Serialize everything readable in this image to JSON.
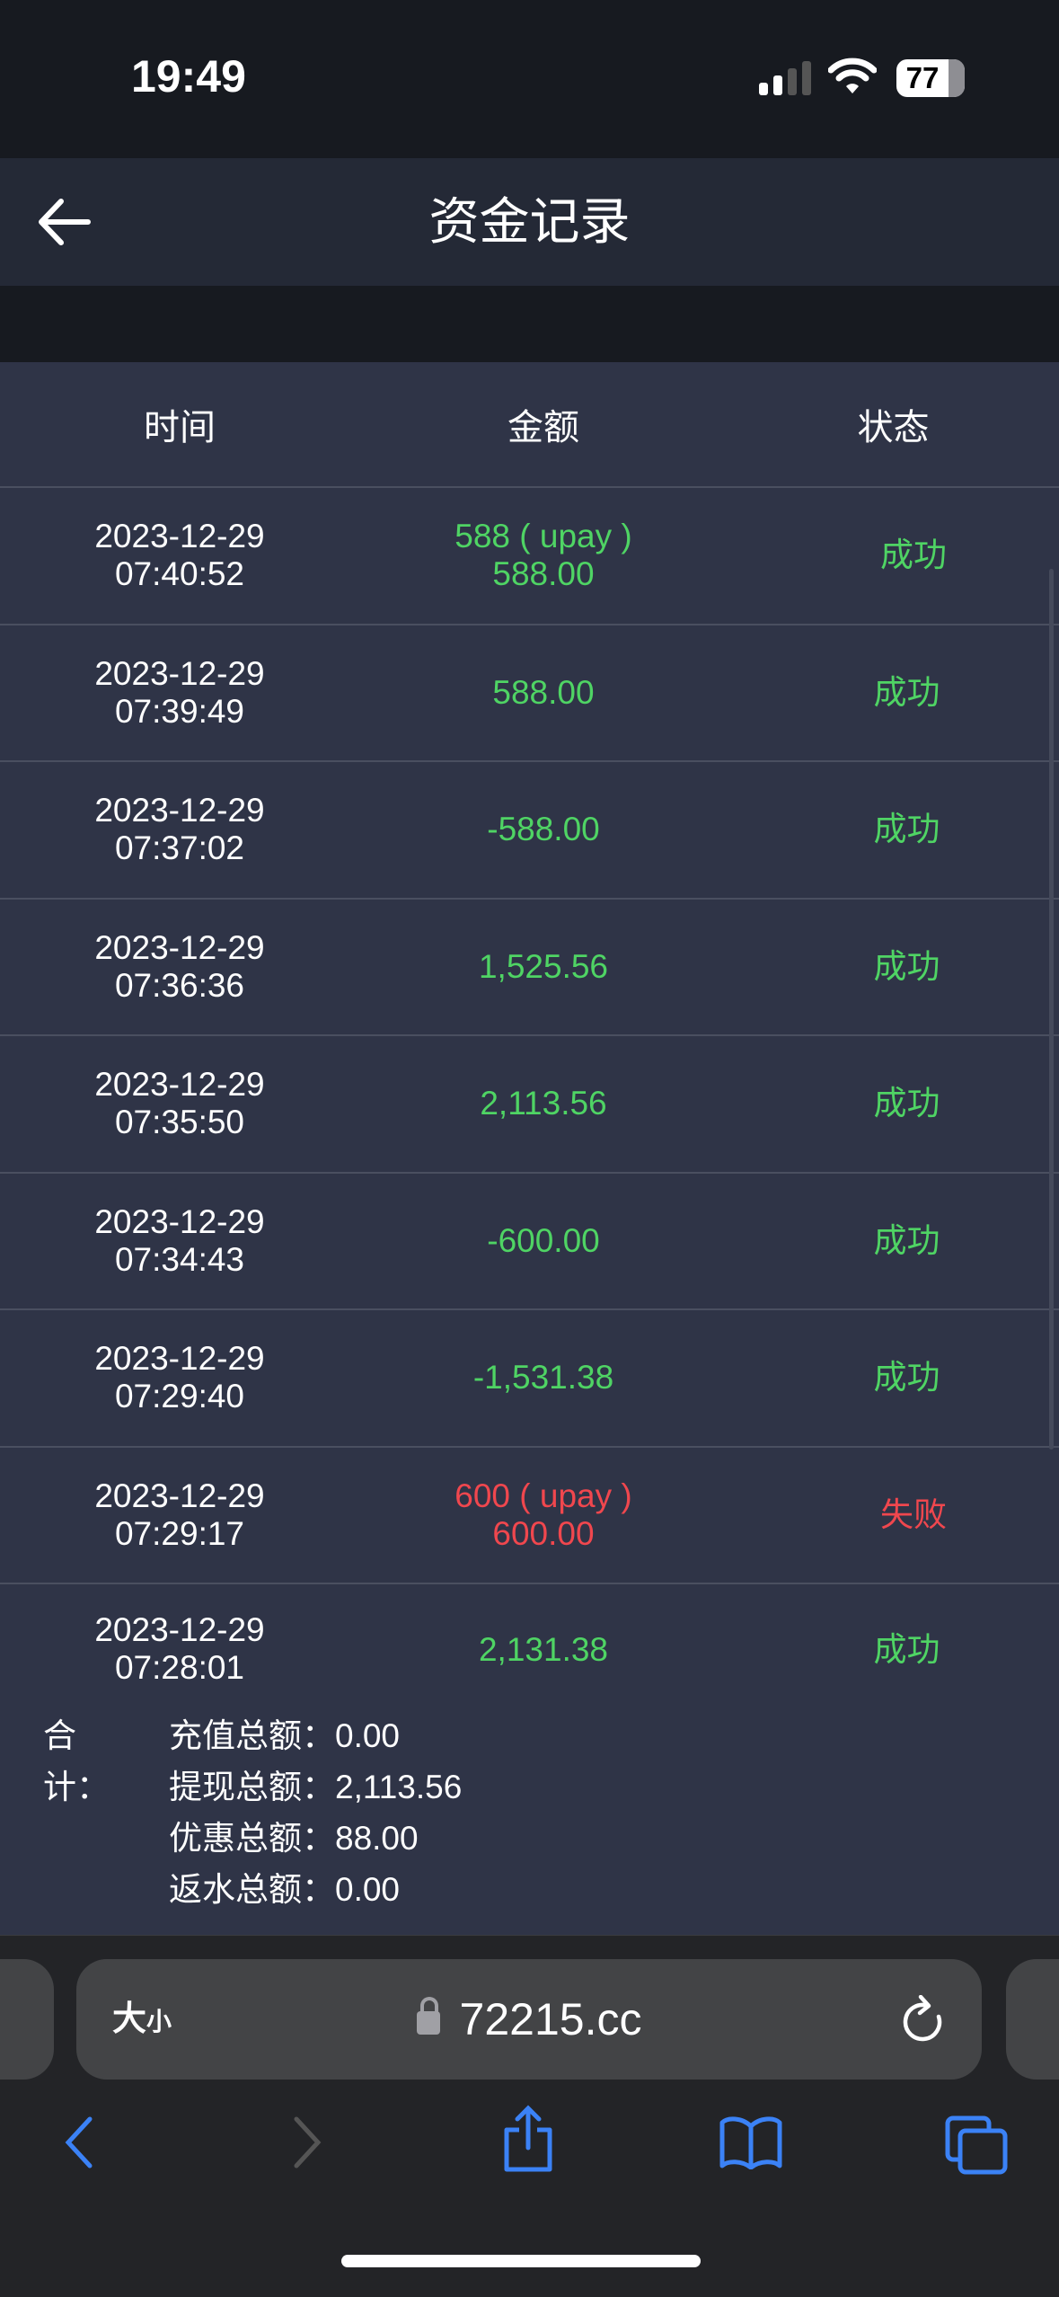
{
  "status_bar": {
    "time": "19:49",
    "battery": "77"
  },
  "header": {
    "title": "资金记录",
    "back_icon": "arrow-left-icon"
  },
  "table": {
    "columns": [
      "时间",
      "金额",
      "状态"
    ],
    "rows": [
      {
        "date": "2023-12-29",
        "time": "07:40:52",
        "amount_line1": "588 ( upay )",
        "amount_line2": "588.00",
        "status": "成功",
        "color": "green"
      },
      {
        "date": "2023-12-29",
        "time": "07:39:49",
        "amount_line1": "588.00",
        "status": "成功",
        "color": "green"
      },
      {
        "date": "2023-12-29",
        "time": "07:37:02",
        "amount_line1": "-588.00",
        "status": "成功",
        "color": "green"
      },
      {
        "date": "2023-12-29",
        "time": "07:36:36",
        "amount_line1": "1,525.56",
        "status": "成功",
        "color": "green"
      },
      {
        "date": "2023-12-29",
        "time": "07:35:50",
        "amount_line1": "2,113.56",
        "status": "成功",
        "color": "green"
      },
      {
        "date": "2023-12-29",
        "time": "07:34:43",
        "amount_line1": "-600.00",
        "status": "成功",
        "color": "green"
      },
      {
        "date": "2023-12-29",
        "time": "07:29:40",
        "amount_line1": "-1,531.38",
        "status": "成功",
        "color": "green"
      },
      {
        "date": "2023-12-29",
        "time": "07:29:17",
        "amount_line1": "600 ( upay )",
        "amount_line2": "600.00",
        "status": "失败",
        "color": "red"
      },
      {
        "date": "2023-12-29",
        "time": "07:28:01",
        "amount_line1": "2,131.38",
        "status": "成功",
        "color": "green"
      }
    ]
  },
  "totals": {
    "label": "合计：",
    "items": [
      {
        "label": "充值总额：",
        "value": "0.00"
      },
      {
        "label": "提现总额：",
        "value": "2,113.56"
      },
      {
        "label": "优惠总额：",
        "value": "88.00"
      },
      {
        "label": "返水总额：",
        "value": "0.00"
      }
    ]
  },
  "browser": {
    "text_size_big": "大",
    "text_size_small": "小",
    "url": "72215.cc"
  },
  "colors": {
    "success": "#4fd464",
    "fail": "#f0474e",
    "accent": "#3b82f6"
  }
}
